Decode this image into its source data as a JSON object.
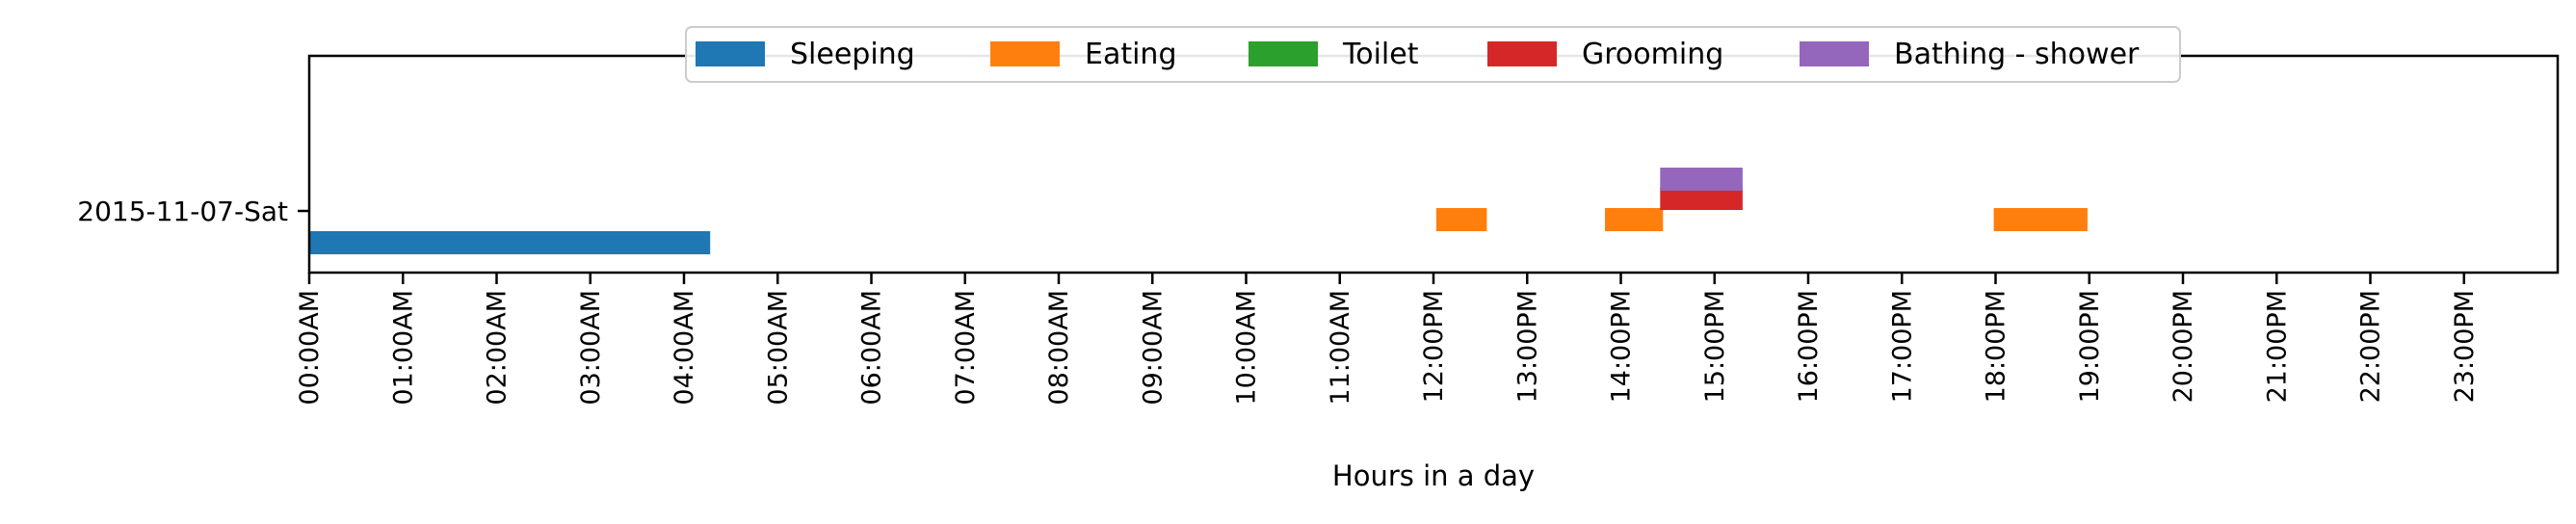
{
  "chart_data": {
    "type": "timeline",
    "title": "",
    "xlabel": "Hours in a day",
    "ylabel": "",
    "xlim": [
      0,
      24
    ],
    "x_ticks": [
      {
        "value": 0,
        "label": "00:00AM"
      },
      {
        "value": 1,
        "label": "01:00AM"
      },
      {
        "value": 2,
        "label": "02:00AM"
      },
      {
        "value": 3,
        "label": "03:00AM"
      },
      {
        "value": 4,
        "label": "04:00AM"
      },
      {
        "value": 5,
        "label": "05:00AM"
      },
      {
        "value": 6,
        "label": "06:00AM"
      },
      {
        "value": 7,
        "label": "07:00AM"
      },
      {
        "value": 8,
        "label": "08:00AM"
      },
      {
        "value": 9,
        "label": "09:00AM"
      },
      {
        "value": 10,
        "label": "10:00AM"
      },
      {
        "value": 11,
        "label": "11:00AM"
      },
      {
        "value": 12,
        "label": "12:00PM"
      },
      {
        "value": 13,
        "label": "13:00PM"
      },
      {
        "value": 14,
        "label": "14:00PM"
      },
      {
        "value": 15,
        "label": "15:00PM"
      },
      {
        "value": 16,
        "label": "16:00PM"
      },
      {
        "value": 17,
        "label": "17:00PM"
      },
      {
        "value": 18,
        "label": "18:00PM"
      },
      {
        "value": 19,
        "label": "19:00PM"
      },
      {
        "value": 20,
        "label": "20:00PM"
      },
      {
        "value": 21,
        "label": "21:00PM"
      },
      {
        "value": 22,
        "label": "22:00PM"
      },
      {
        "value": 23,
        "label": "23:00PM"
      }
    ],
    "y_categories": [
      "2015-11-07-Sat"
    ],
    "legend_position": "top-center",
    "grid": false,
    "series": [
      {
        "name": "Sleeping",
        "color": "#1f77b4",
        "lane": 0,
        "intervals": [
          [
            0.0,
            4.28
          ]
        ]
      },
      {
        "name": "Eating",
        "color": "#ff7f0e",
        "lane": 1,
        "intervals": [
          [
            12.03,
            12.57
          ],
          [
            13.83,
            14.45
          ],
          [
            17.98,
            18.98
          ]
        ]
      },
      {
        "name": "Toilet",
        "color": "#2ca02c",
        "lane": 2,
        "intervals": []
      },
      {
        "name": "Grooming",
        "color": "#d62728",
        "lane": 2,
        "intervals": [
          [
            14.42,
            15.3
          ]
        ]
      },
      {
        "name": "Bathing - shower",
        "color": "#9467bd",
        "lane": 3,
        "intervals": [
          [
            14.42,
            15.3
          ]
        ]
      }
    ]
  }
}
